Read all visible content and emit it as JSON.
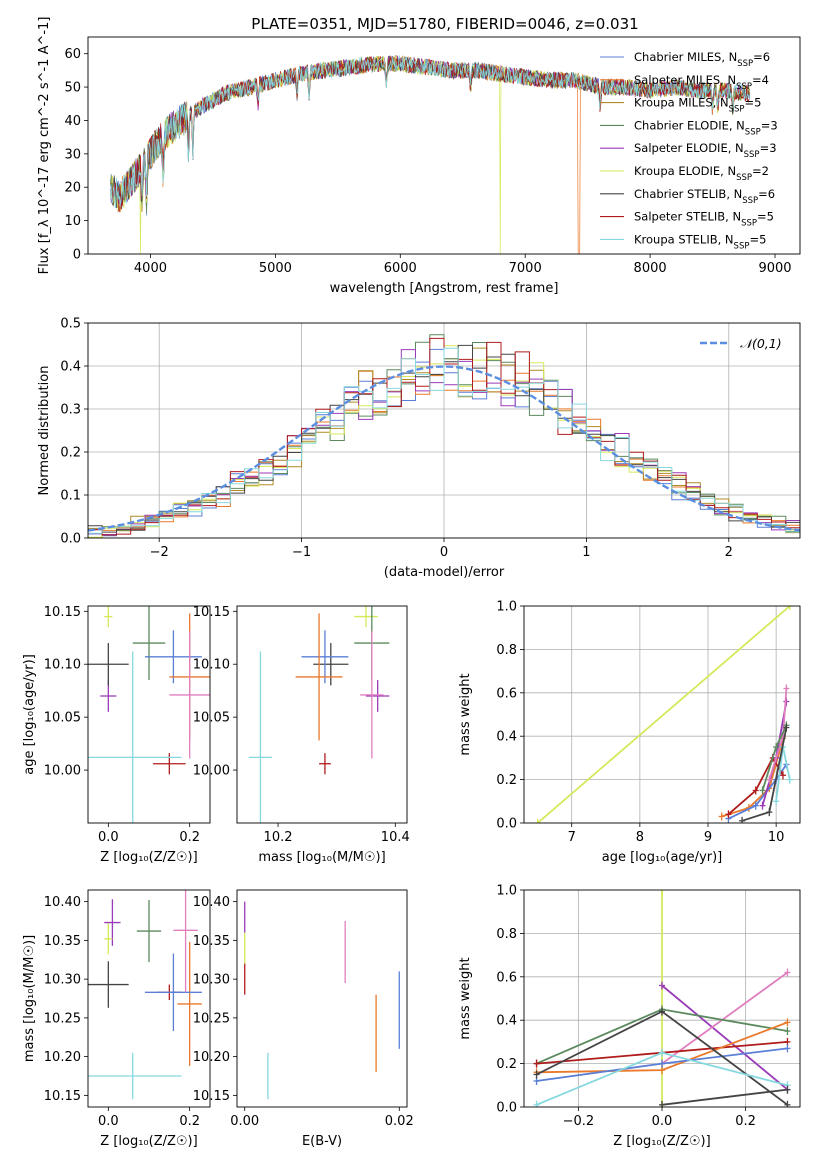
{
  "title": "PLATE=0351, MJD=51780, FIBERID=0046, z=0.031",
  "colors": {
    "chabrier_miles": "#5b7fd6",
    "salpeter_miles": "#e9792b",
    "kroupa_miles": "#b08a24",
    "chabrier_elodie": "#5b8a5e",
    "salpeter_elodie": "#9a3ab8",
    "kroupa_elodie": "#d6e85a",
    "chabrier_stelib": "#444444",
    "salpeter_stelib": "#b01c1c",
    "kroupa_stelib": "#86d8df",
    "pink": "#e07fc0",
    "normal": "#5b8ee0"
  },
  "chart_data": [
    {
      "id": "spectrum",
      "type": "line",
      "title": "PLATE=0351, MJD=51780, FIBERID=0046, z=0.031",
      "xlabel": "wavelength [Angstrom, rest frame]",
      "ylabel": "Flux [f_λ 10^-17 erg cm^-2 s^-1 A^-1]",
      "xlim": [
        3500,
        9200
      ],
      "ylim": [
        0,
        65
      ],
      "xticks": [
        "4000",
        "5000",
        "6000",
        "7000",
        "8000",
        "9000"
      ],
      "yticks": [
        "0",
        "10",
        "20",
        "30",
        "40",
        "50",
        "60"
      ],
      "x": [
        3680,
        3750,
        3850,
        3950,
        4050,
        4150,
        4250,
        4400,
        4600,
        4800,
        5000,
        5200,
        5400,
        5600,
        5800,
        6000,
        6200,
        6400,
        6600,
        6800,
        7000,
        7200,
        7400,
        7600,
        7800,
        8000,
        8200,
        8400,
        8600,
        8800
      ],
      "y": [
        20,
        17,
        22,
        27,
        33,
        37,
        40,
        44,
        48,
        50,
        52,
        54,
        55,
        56,
        57,
        57,
        56,
        55,
        55,
        54,
        53,
        52,
        52,
        50,
        50,
        49,
        50,
        49,
        49,
        48
      ],
      "legend": [
        {
          "label": "Chabrier MILES, N",
          "n": "=6",
          "color": "#5b7fd6"
        },
        {
          "label": "Salpeter MILES, N",
          "n": "=4",
          "color": "#e9792b"
        },
        {
          "label": "Kroupa MILES, N",
          "n": "=5",
          "color": "#b08a24"
        },
        {
          "label": "Chabrier ELODIE, N",
          "n": "=3",
          "color": "#5b8a5e"
        },
        {
          "label": "Salpeter ELODIE, N",
          "n": "=3",
          "color": "#9a3ab8"
        },
        {
          "label": "Kroupa ELODIE, N",
          "n": "=2",
          "color": "#d6e85a"
        },
        {
          "label": "Chabrier STELIB, N",
          "n": "=6",
          "color": "#444444"
        },
        {
          "label": "Salpeter STELIB, N",
          "n": "=5",
          "color": "#b01c1c"
        },
        {
          "label": "Kroupa STELIB, N",
          "n": "=5",
          "color": "#86d8df"
        }
      ],
      "legend_sub": "SSP",
      "legend_position": "right"
    },
    {
      "id": "residuals",
      "type": "histogram",
      "xlabel": "(data-model)/error",
      "ylabel": "Normed distribution",
      "xlim": [
        -2.5,
        2.5
      ],
      "ylim": [
        0,
        0.5
      ],
      "xticks": [
        "−2",
        "−1",
        "0",
        "1",
        "2"
      ],
      "yticks": [
        "0.0",
        "0.1",
        "0.2",
        "0.3",
        "0.4",
        "0.5"
      ],
      "grid": true,
      "bin_width": 0.1,
      "legend_label": "𝒩(0,1)",
      "legend_position": "top-right"
    },
    {
      "id": "age_vs_Z",
      "type": "scatter",
      "xlabel": "Z [log₁₀(Z/Z☉)]",
      "ylabel": "age  [log₁₀(age/yr)]",
      "xlim": [
        -0.05,
        0.25
      ],
      "ylim": [
        9.95,
        10.155
      ],
      "xticks": [
        "0.0",
        "0.2"
      ],
      "yticks": [
        "10.00",
        "10.05",
        "10.10",
        "10.15"
      ],
      "points": [
        {
          "x": 0.0,
          "y": 10.145,
          "xerr": 0.01,
          "yerr": 0.01,
          "color": "#d6e85a"
        },
        {
          "x": 0.0,
          "y": 10.07,
          "xerr": 0.02,
          "yerr": 0.015,
          "color": "#9a3ab8"
        },
        {
          "x": 0.0,
          "y": 10.1,
          "xerr": 0.05,
          "yerr": 0.02,
          "color": "#444444"
        },
        {
          "x": 0.1,
          "y": 10.12,
          "xerr": 0.04,
          "yerr": 0.035,
          "color": "#5b8a5e"
        },
        {
          "x": 0.16,
          "y": 10.107,
          "xerr": 0.07,
          "yerr": 0.025,
          "color": "#5b7fd6"
        },
        {
          "x": 0.2,
          "y": 10.088,
          "xerr": 0.05,
          "yerr": 0.06,
          "color": "#e9792b"
        },
        {
          "x": 0.2,
          "y": 10.071,
          "xerr": 0.05,
          "yerr": 0.06,
          "color": "#e07fc0"
        },
        {
          "x": 0.15,
          "y": 10.006,
          "xerr": 0.04,
          "yerr": 0.01,
          "color": "#b01c1c"
        },
        {
          "x": 0.06,
          "y": 10.012,
          "xerr": 0.12,
          "yerr": 0.1,
          "color": "#86d8df"
        }
      ]
    },
    {
      "id": "age_vs_mass",
      "type": "scatter",
      "xlabel": "mass [log₁₀(M/M☉)]",
      "ylabel": "",
      "xlim": [
        10.13,
        10.42
      ],
      "ylim": [
        9.95,
        10.155
      ],
      "xticks": [
        "10.2",
        "10.4"
      ],
      "yticks": [
        "10.00",
        "10.05",
        "10.10",
        "10.15"
      ],
      "points": [
        {
          "x": 10.35,
          "y": 10.145,
          "xerr": 0.02,
          "yerr": 0.01,
          "color": "#d6e85a"
        },
        {
          "x": 10.37,
          "y": 10.07,
          "xerr": 0.02,
          "yerr": 0.015,
          "color": "#9a3ab8"
        },
        {
          "x": 10.29,
          "y": 10.1,
          "xerr": 0.03,
          "yerr": 0.02,
          "color": "#444444"
        },
        {
          "x": 10.36,
          "y": 10.12,
          "xerr": 0.03,
          "yerr": 0.035,
          "color": "#5b8a5e"
        },
        {
          "x": 10.28,
          "y": 10.107,
          "xerr": 0.04,
          "yerr": 0.025,
          "color": "#5b7fd6"
        },
        {
          "x": 10.27,
          "y": 10.088,
          "xerr": 0.04,
          "yerr": 0.06,
          "color": "#e9792b"
        },
        {
          "x": 10.36,
          "y": 10.071,
          "xerr": 0.02,
          "yerr": 0.06,
          "color": "#e07fc0"
        },
        {
          "x": 10.28,
          "y": 10.006,
          "xerr": 0.01,
          "yerr": 0.01,
          "color": "#b01c1c"
        },
        {
          "x": 10.17,
          "y": 10.012,
          "xerr": 0.02,
          "yerr": 0.1,
          "color": "#86d8df"
        }
      ]
    },
    {
      "id": "weight_vs_age",
      "type": "line",
      "xlabel": "age  [log₁₀(age/yr)]",
      "ylabel": "mass weight",
      "xlim": [
        6.3,
        10.35
      ],
      "ylim": [
        0,
        1.0
      ],
      "xticks": [
        "7",
        "8",
        "9",
        "10"
      ],
      "yticks": [
        "0.0",
        "0.2",
        "0.4",
        "0.6",
        "0.8",
        "1.0"
      ],
      "grid": true,
      "series": [
        {
          "color": "#d6e85a",
          "x": [
            6.5,
            10.2
          ],
          "y": [
            0.0,
            1.0
          ]
        },
        {
          "color": "#e9792b",
          "x": [
            9.2,
            9.6,
            9.9,
            10.1
          ],
          "y": [
            0.03,
            0.07,
            0.16,
            0.39
          ]
        },
        {
          "color": "#5b7fd6",
          "x": [
            9.3,
            9.7,
            10.0,
            10.15
          ],
          "y": [
            0.02,
            0.08,
            0.2,
            0.27
          ]
        },
        {
          "color": "#b01c1c",
          "x": [
            9.3,
            9.7,
            9.95,
            10.1
          ],
          "y": [
            0.04,
            0.15,
            0.3,
            0.22
          ]
        },
        {
          "color": "#9a3ab8",
          "x": [
            9.8,
            10.0,
            10.15
          ],
          "y": [
            0.08,
            0.3,
            0.56
          ]
        },
        {
          "color": "#e07fc0",
          "x": [
            9.9,
            10.1,
            10.15
          ],
          "y": [
            0.2,
            0.4,
            0.62
          ]
        },
        {
          "color": "#5b8a5e",
          "x": [
            9.8,
            10.0,
            10.15
          ],
          "y": [
            0.15,
            0.35,
            0.45
          ]
        },
        {
          "color": "#86d8df",
          "x": [
            10.0,
            10.1,
            10.2
          ],
          "y": [
            0.1,
            0.35,
            0.2
          ]
        },
        {
          "color": "#444444",
          "x": [
            9.5,
            9.9,
            10.15
          ],
          "y": [
            0.01,
            0.05,
            0.44
          ]
        }
      ]
    },
    {
      "id": "mass_vs_Z",
      "type": "scatter",
      "xlabel": "Z [log₁₀(Z/Z☉)]",
      "ylabel": "mass [log₁₀(M/M☉)]",
      "xlim": [
        -0.05,
        0.25
      ],
      "ylim": [
        10.135,
        10.415
      ],
      "xticks": [
        "0.0",
        "0.2"
      ],
      "yticks": [
        "10.15",
        "10.20",
        "10.25",
        "10.30",
        "10.35",
        "10.40"
      ],
      "points": [
        {
          "x": 0.01,
          "y": 10.373,
          "xerr": 0.02,
          "yerr": 0.03,
          "color": "#9a3ab8"
        },
        {
          "x": 0.0,
          "y": 10.352,
          "xerr": 0.01,
          "yerr": 0.02,
          "color": "#d6e85a"
        },
        {
          "x": 0.1,
          "y": 10.362,
          "xerr": 0.03,
          "yerr": 0.04,
          "color": "#5b8a5e"
        },
        {
          "x": 0.0,
          "y": 10.293,
          "xerr": 0.05,
          "yerr": 0.03,
          "color": "#444444"
        },
        {
          "x": 0.15,
          "y": 10.283,
          "xerr": 0.03,
          "yerr": 0.01,
          "color": "#b01c1c"
        },
        {
          "x": 0.2,
          "y": 10.268,
          "xerr": 0.03,
          "yerr": 0.08,
          "color": "#e9792b"
        },
        {
          "x": 0.16,
          "y": 10.283,
          "xerr": 0.07,
          "yerr": 0.05,
          "color": "#5b7fd6"
        },
        {
          "x": 0.19,
          "y": 10.363,
          "xerr": 0.03,
          "yerr": 0.08,
          "color": "#e07fc0"
        },
        {
          "x": 0.06,
          "y": 10.175,
          "xerr": 0.12,
          "yerr": 0.03,
          "color": "#86d8df"
        }
      ]
    },
    {
      "id": "mass_vs_ebv",
      "type": "scatter",
      "xlabel": "E(B-V)",
      "ylabel": "",
      "xlim": [
        -0.001,
        0.021
      ],
      "ylim": [
        10.135,
        10.415
      ],
      "xticks": [
        "0.00",
        "0.02"
      ],
      "yticks": [
        "10.15",
        "10.20",
        "10.25",
        "10.30",
        "10.35",
        "10.40"
      ],
      "points": [
        {
          "x": 0.0,
          "y": 10.38,
          "xerr": 0,
          "yerr": 0.02,
          "color": "#9a3ab8"
        },
        {
          "x": 0.0,
          "y": 10.34,
          "xerr": 0,
          "yerr": 0.02,
          "color": "#d6e85a"
        },
        {
          "x": 0.0,
          "y": 10.3,
          "xerr": 0,
          "yerr": 0.02,
          "color": "#b01c1c"
        },
        {
          "x": 0.003,
          "y": 10.175,
          "xerr": 0,
          "yerr": 0.03,
          "color": "#86d8df"
        },
        {
          "x": 0.013,
          "y": 10.335,
          "xerr": 0,
          "yerr": 0.04,
          "color": "#e07fc0"
        },
        {
          "x": 0.017,
          "y": 10.23,
          "xerr": 0,
          "yerr": 0.05,
          "color": "#e9792b"
        },
        {
          "x": 0.02,
          "y": 10.26,
          "xerr": 0,
          "yerr": 0.05,
          "color": "#5b7fd6"
        }
      ]
    },
    {
      "id": "weight_vs_Z",
      "type": "line",
      "xlabel": "Z [log₁₀(Z/Z☉)]",
      "ylabel": "mass weight",
      "xlim": [
        -0.33,
        0.33
      ],
      "ylim": [
        0,
        1.0
      ],
      "xticks": [
        "−0.2",
        "0.0",
        "0.2"
      ],
      "yticks": [
        "0.0",
        "0.2",
        "0.4",
        "0.6",
        "0.8",
        "1.0"
      ],
      "grid": true,
      "series": [
        {
          "color": "#d6e85a",
          "x": [
            0.0,
            0.0
          ],
          "y": [
            0.0,
            1.0
          ]
        },
        {
          "color": "#9a3ab8",
          "x": [
            0.0,
            0.3
          ],
          "y": [
            0.56,
            0.08
          ]
        },
        {
          "color": "#e07fc0",
          "x": [
            0.0,
            0.3
          ],
          "y": [
            0.2,
            0.62
          ]
        },
        {
          "color": "#5b8a5e",
          "x": [
            -0.3,
            0.0,
            0.3
          ],
          "y": [
            0.2,
            0.45,
            0.35
          ]
        },
        {
          "color": "#b01c1c",
          "x": [
            -0.3,
            0.3
          ],
          "y": [
            0.2,
            0.3
          ]
        },
        {
          "color": "#e9792b",
          "x": [
            -0.3,
            0.0,
            0.3
          ],
          "y": [
            0.16,
            0.17,
            0.39
          ]
        },
        {
          "color": "#5b7fd6",
          "x": [
            -0.3,
            0.0,
            0.3
          ],
          "y": [
            0.12,
            0.2,
            0.27
          ]
        },
        {
          "color": "#444444",
          "x": [
            -0.3,
            0.0,
            0.3
          ],
          "y": [
            0.15,
            0.44,
            0.01
          ]
        },
        {
          "color": "#86d8df",
          "x": [
            -0.3,
            0.0,
            0.3
          ],
          "y": [
            0.01,
            0.25,
            0.1
          ]
        },
        {
          "color": "#444444",
          "x": [
            0.0,
            0.3
          ],
          "y": [
            0.01,
            0.08
          ]
        }
      ]
    }
  ]
}
